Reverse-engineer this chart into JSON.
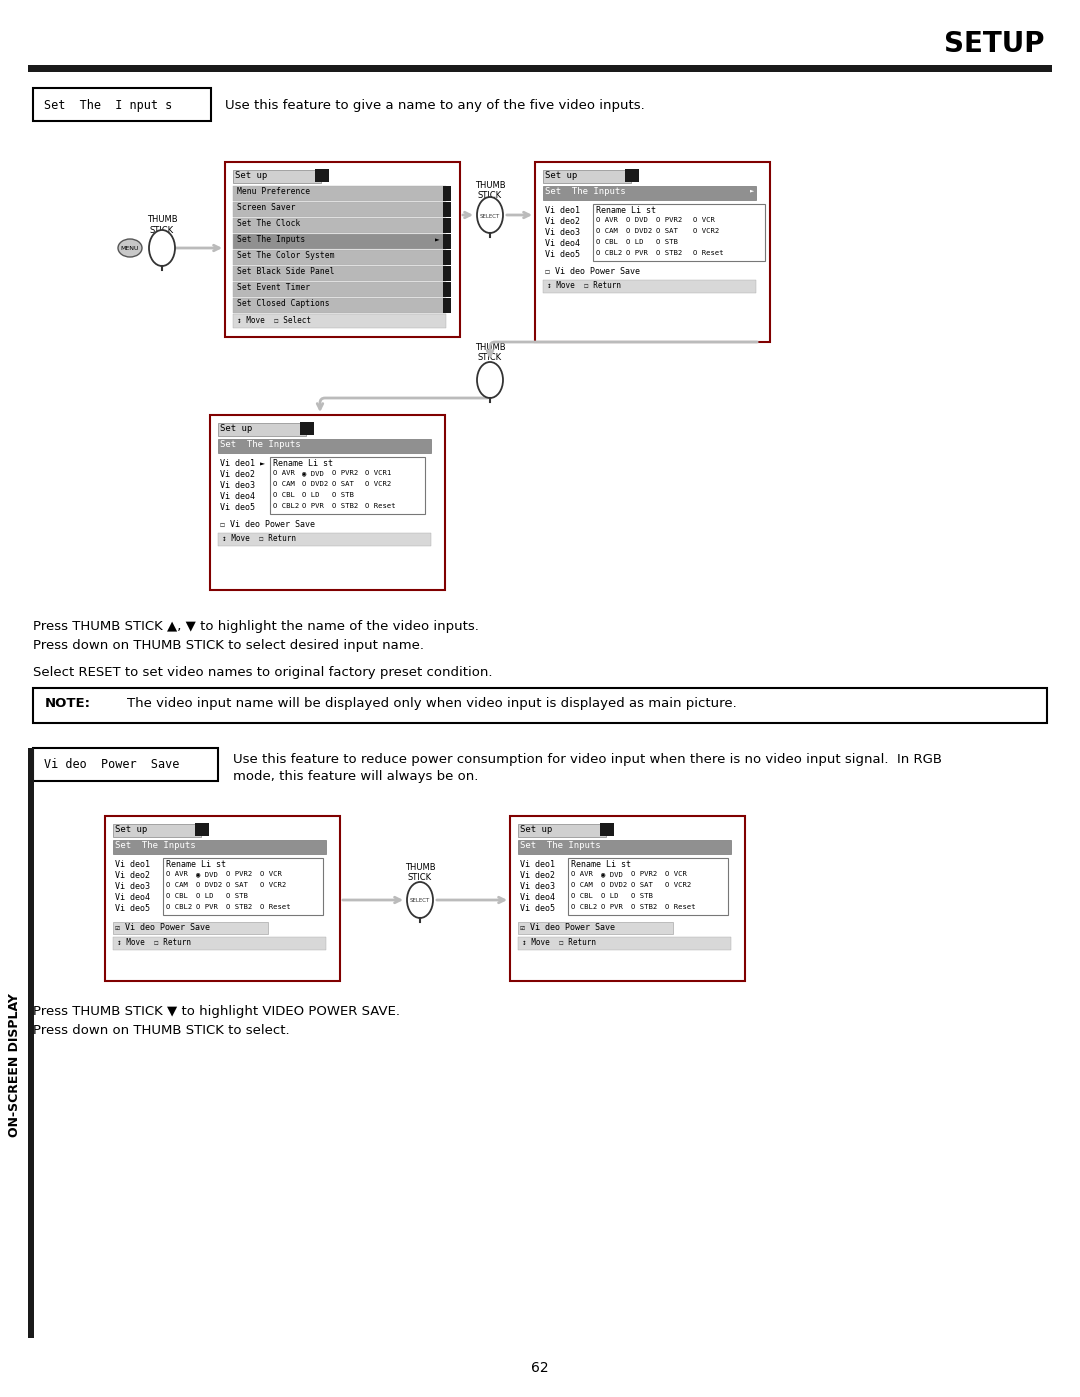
{
  "title": "SETUP",
  "bg_color": "#ffffff",
  "page_number": "62",
  "section1_label": "Set  The  I nput s",
  "section1_desc": "Use this feature to give a name to any of the five video inputs.",
  "section2_label": "Vi deo  Power  Save",
  "section2_desc1": "Use this feature to reduce power consumption for video input when there is no video input signal.  In RGB",
  "section2_desc2": "mode, this feature will always be on.",
  "note_label": "NOTE:",
  "note_text": "    The video input name will be displayed only when video input is displayed as main picture.",
  "text1a": "Press THUMB STICK ▲, ▼ to highlight the name of the video inputs.",
  "text1b": "Press down on THUMB STICK to select desired input name.",
  "text2": "Select RESET to set video names to original factory preset condition.",
  "text3a": "Press THUMB STICK ▼ to highlight VIDEO POWER SAVE.",
  "text3b": "Press down on THUMB STICK to select.",
  "on_screen_display": "ON-SCREEN DISPLAY",
  "menu_items": [
    "Menu Preference",
    "Screen Saver",
    "Set The Clock",
    "Set The Inputs",
    "Set The Color System",
    "Set Black Side Panel",
    "Set Event Timer",
    "Set Closed Captions"
  ],
  "setup_menu_highlight": "Set The Inputs"
}
